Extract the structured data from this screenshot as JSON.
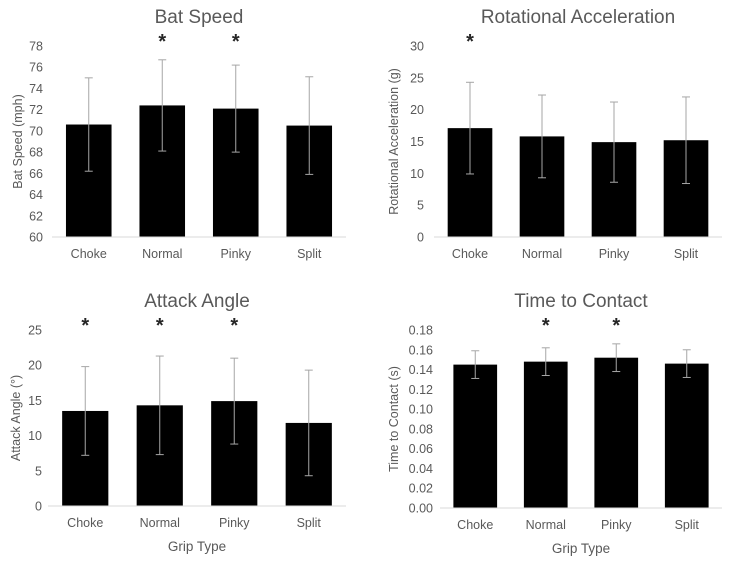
{
  "chart_data": [
    {
      "type": "bar",
      "title": "Bat Speed",
      "xlabel": "",
      "ylabel": "Bat Speed (mph)",
      "categories": [
        "Choke",
        "Normal",
        "Pinky",
        "Split"
      ],
      "values": [
        70.6,
        72.4,
        72.1,
        70.5
      ],
      "errors": [
        4.4,
        4.3,
        4.1,
        4.6
      ],
      "significant": [
        false,
        true,
        true,
        false
      ],
      "ylim": [
        60,
        78
      ],
      "yticks": [
        "60",
        "62",
        "64",
        "66",
        "68",
        "70",
        "72",
        "74",
        "76",
        "78"
      ],
      "grid": false,
      "bar_color": "#000000",
      "error_color": "#a6a6a6",
      "marker_text": "*"
    },
    {
      "type": "bar",
      "title": "Rotational Acceleration",
      "xlabel": "",
      "ylabel": "Rotational Acceleration (g)",
      "categories": [
        "Choke",
        "Normal",
        "Pinky",
        "Split"
      ],
      "values": [
        17.1,
        15.8,
        14.9,
        15.2
      ],
      "errors": [
        7.2,
        6.5,
        6.3,
        6.8
      ],
      "significant": [
        true,
        false,
        false,
        false
      ],
      "ylim": [
        0,
        30
      ],
      "yticks": [
        "0",
        "5",
        "10",
        "15",
        "20",
        "25",
        "30"
      ],
      "grid": false,
      "bar_color": "#000000",
      "error_color": "#a6a6a6",
      "marker_text": "*"
    },
    {
      "type": "bar",
      "title": "Attack Angle",
      "xlabel": "Grip Type",
      "ylabel": "Attack Angle (°)",
      "categories": [
        "Choke",
        "Normal",
        "Pinky",
        "Split"
      ],
      "values": [
        13.5,
        14.3,
        14.9,
        11.8
      ],
      "errors": [
        6.3,
        7.0,
        6.1,
        7.5
      ],
      "significant": [
        true,
        true,
        true,
        false
      ],
      "ylim": [
        0,
        25
      ],
      "yticks": [
        "0",
        "5",
        "10",
        "15",
        "20",
        "25"
      ],
      "grid": false,
      "bar_color": "#000000",
      "error_color": "#a6a6a6",
      "marker_text": "*"
    },
    {
      "type": "bar",
      "title": "Time to Contact",
      "xlabel": "Grip Type",
      "ylabel": "Time to Contact (s)",
      "categories": [
        "Choke",
        "Normal",
        "Pinky",
        "Split"
      ],
      "values": [
        0.145,
        0.148,
        0.152,
        0.146
      ],
      "errors": [
        0.014,
        0.014,
        0.014,
        0.014
      ],
      "significant": [
        false,
        true,
        true,
        false
      ],
      "ylim": [
        0,
        0.18
      ],
      "yticks": [
        "0.00",
        "0.02",
        "0.04",
        "0.06",
        "0.08",
        "0.10",
        "0.12",
        "0.14",
        "0.16",
        "0.18"
      ],
      "grid": false,
      "bar_color": "#000000",
      "error_color": "#a6a6a6",
      "marker_text": "*"
    }
  ]
}
